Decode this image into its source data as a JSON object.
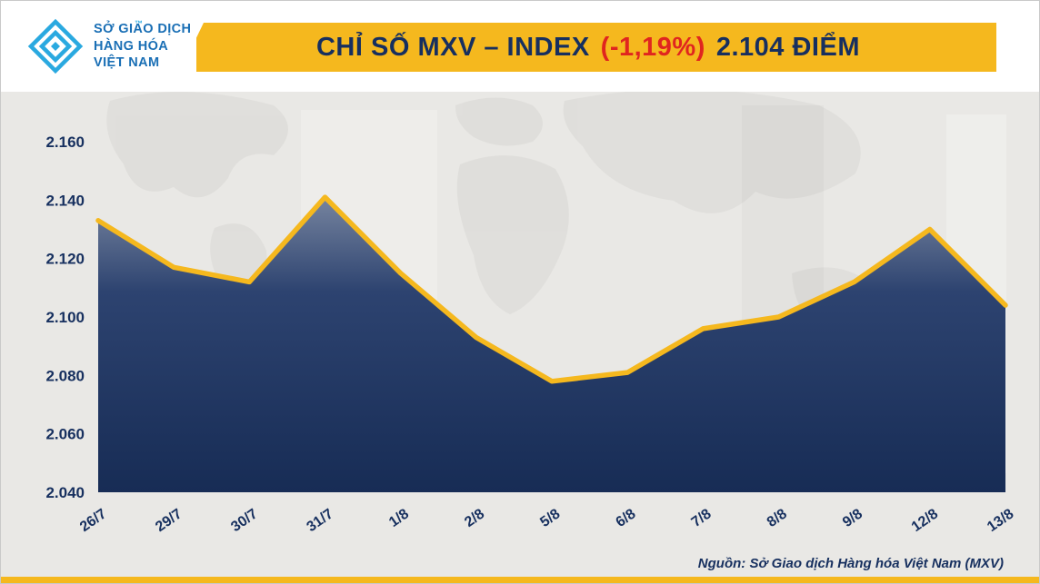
{
  "logo": {
    "line1": "SỞ GIAO DỊCH",
    "line2": "HÀNG HÓA",
    "line3": "VIỆT NAM",
    "trademark": "™"
  },
  "banner": {
    "title": "CHỈ SỐ MXV – INDEX",
    "change": "(-1,19%)",
    "points": "2.104 ĐIỂM"
  },
  "source": "Nguồn: Sở Giao dịch Hàng hóa Việt Nam (MXV)",
  "colors": {
    "banner_gold": "#f5b81e",
    "navy": "#172f5f",
    "red": "#e0251f",
    "panel_gray": "#e9e8e5",
    "logo_blue": "#2aa9e0",
    "logo_text_blue": "#1a6fb5"
  },
  "chart_data": {
    "type": "area",
    "title": "Chỉ số MXV – INDEX (-1,19%) 2.104 điểm",
    "categories": [
      "26/7",
      "29/7",
      "30/7",
      "31/7",
      "1/8",
      "2/8",
      "5/8",
      "6/8",
      "7/8",
      "8/8",
      "9/8",
      "12/8",
      "13/8"
    ],
    "values": [
      2133,
      2117,
      2112,
      2141,
      2115,
      2093,
      2078,
      2081,
      2096,
      2100,
      2112,
      2130,
      2104
    ],
    "xlabel": "",
    "ylabel": "",
    "ylim": [
      2040,
      2160
    ],
    "yticks": [
      {
        "value": 2160,
        "label": "2.160"
      },
      {
        "value": 2140,
        "label": "2.140"
      },
      {
        "value": 2120,
        "label": "2.120"
      },
      {
        "value": 2100,
        "label": "2.100"
      },
      {
        "value": 2080,
        "label": "2.080"
      },
      {
        "value": 2060,
        "label": "2.060"
      },
      {
        "value": 2040,
        "label": "2.040"
      }
    ],
    "grid": false,
    "legend": "none",
    "colors": {
      "line": "#f5b81e",
      "fill_top": "#76849f",
      "fill_mid": "#2d4370",
      "fill_bottom": "#172c55",
      "labels": "#17305f"
    }
  }
}
